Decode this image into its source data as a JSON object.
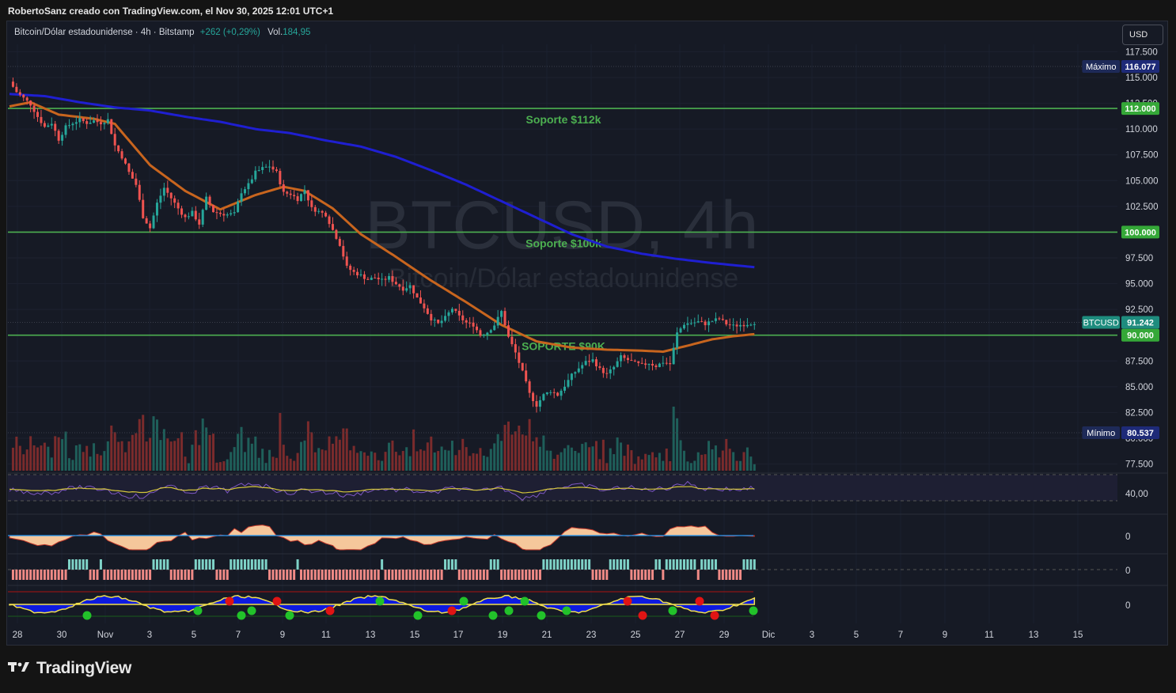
{
  "header": {
    "attribution": "RobertoSanz creado con TradingView.com, el Nov 30, 2025 12:01 UTC+1"
  },
  "legend": {
    "symbol_desc": "Bitcoin/Dólar estadounidense · 4h · Bitstamp",
    "change": "+262 (+0,29%)",
    "vol_label": "Vol.",
    "vol_value": "184,95"
  },
  "currency_button": "USD",
  "watermark": {
    "ticker": "BTCUSD, 4h",
    "name": "Bitcoin/Dólar estadounidense"
  },
  "brand": "TradingView",
  "colors": {
    "up": "#26a69a",
    "down": "#ef5350",
    "support": "#4caf50",
    "ma_fast": "#c8651e",
    "ma_slow": "#1f1fd1",
    "background": "#161a25"
  },
  "chart_data": {
    "type": "candlestick",
    "price_axis_ticks": [
      "117.500",
      "115.000",
      "112.500",
      "110.000",
      "107.500",
      "105.000",
      "102.500",
      "100.000",
      "97.500",
      "95.000",
      "92.500",
      "90.000",
      "87.500",
      "85.000",
      "82.500",
      "80.000",
      "77.500"
    ],
    "price_range": [
      77000,
      118000
    ],
    "time_axis_ticks": [
      "28",
      "30",
      "Nov",
      "3",
      "5",
      "7",
      "9",
      "11",
      "13",
      "15",
      "17",
      "19",
      "21",
      "23",
      "25",
      "27",
      "29",
      "Dic",
      "3",
      "5",
      "7",
      "9",
      "11",
      "13",
      "15"
    ],
    "price_tags": [
      {
        "label": "Máximo",
        "value": "116.077",
        "kind": "max"
      },
      {
        "label": "",
        "value": "112.000",
        "kind": "support"
      },
      {
        "label": "",
        "value": "100.000",
        "kind": "support"
      },
      {
        "label": "BTCUSD",
        "value": "91.242",
        "kind": "last"
      },
      {
        "label": "",
        "value": "90.000",
        "kind": "support"
      },
      {
        "label": "Mínimo",
        "value": "80.537",
        "kind": "min"
      }
    ],
    "support_lines": [
      {
        "price": 112000,
        "label": "Soporte $112k"
      },
      {
        "price": 100000,
        "label": "Soporte $100k"
      },
      {
        "price": 90000,
        "label": "SOPORTE $90K"
      }
    ],
    "path_points": [
      [
        0,
        114600
      ],
      [
        2,
        113600
      ],
      [
        4,
        113000
      ],
      [
        6,
        112400
      ],
      [
        8,
        111200
      ],
      [
        10,
        110200
      ],
      [
        12,
        110600
      ],
      [
        14,
        109000
      ],
      [
        16,
        110200
      ],
      [
        18,
        110600
      ],
      [
        20,
        110900
      ],
      [
        22,
        110600
      ],
      [
        24,
        110800
      ],
      [
        26,
        110600
      ],
      [
        28,
        110900
      ],
      [
        30,
        108400
      ],
      [
        32,
        107300
      ],
      [
        34,
        105800
      ],
      [
        36,
        104600
      ],
      [
        38,
        101500
      ],
      [
        40,
        100400
      ],
      [
        42,
        102800
      ],
      [
        44,
        104300
      ],
      [
        46,
        103300
      ],
      [
        48,
        102300
      ],
      [
        50,
        101400
      ],
      [
        52,
        101900
      ],
      [
        54,
        100800
      ],
      [
        56,
        103300
      ],
      [
        58,
        102000
      ],
      [
        60,
        101800
      ],
      [
        62,
        101700
      ],
      [
        64,
        101800
      ],
      [
        66,
        103900
      ],
      [
        68,
        104600
      ],
      [
        70,
        105800
      ],
      [
        72,
        106200
      ],
      [
        74,
        106400
      ],
      [
        76,
        105800
      ],
      [
        78,
        103800
      ],
      [
        80,
        103700
      ],
      [
        82,
        103200
      ],
      [
        84,
        104100
      ],
      [
        86,
        102300
      ],
      [
        88,
        102000
      ],
      [
        90,
        101700
      ],
      [
        92,
        100200
      ],
      [
        94,
        98800
      ],
      [
        96,
        96600
      ],
      [
        98,
        96100
      ],
      [
        100,
        95800
      ],
      [
        102,
        95400
      ],
      [
        104,
        95600
      ],
      [
        106,
        95300
      ],
      [
        108,
        95600
      ],
      [
        110,
        95000
      ],
      [
        112,
        94500
      ],
      [
        114,
        94800
      ],
      [
        116,
        93600
      ],
      [
        118,
        92700
      ],
      [
        120,
        91600
      ],
      [
        122,
        91100
      ],
      [
        124,
        91700
      ],
      [
        126,
        92600
      ],
      [
        128,
        91800
      ],
      [
        130,
        91200
      ],
      [
        132,
        91000
      ],
      [
        134,
        90000
      ],
      [
        136,
        90300
      ],
      [
        138,
        91000
      ],
      [
        140,
        92300
      ],
      [
        142,
        89800
      ],
      [
        144,
        88300
      ],
      [
        146,
        86400
      ],
      [
        148,
        84300
      ],
      [
        150,
        83200
      ],
      [
        152,
        84200
      ],
      [
        154,
        84600
      ],
      [
        156,
        84200
      ],
      [
        158,
        85100
      ],
      [
        160,
        86100
      ],
      [
        162,
        86800
      ],
      [
        164,
        87400
      ],
      [
        166,
        87600
      ],
      [
        168,
        86700
      ],
      [
        170,
        86200
      ],
      [
        172,
        86900
      ],
      [
        174,
        87900
      ],
      [
        176,
        87600
      ],
      [
        178,
        87300
      ],
      [
        180,
        87100
      ],
      [
        182,
        87300
      ],
      [
        184,
        87000
      ],
      [
        186,
        87400
      ],
      [
        188,
        87200
      ],
      [
        190,
        90200
      ],
      [
        192,
        91100
      ],
      [
        194,
        91200
      ],
      [
        196,
        91300
      ],
      [
        198,
        91100
      ],
      [
        200,
        91400
      ],
      [
        202,
        91600
      ],
      [
        204,
        91100
      ],
      [
        206,
        90900
      ],
      [
        208,
        91000
      ],
      [
        210,
        91100
      ],
      [
        212,
        91242
      ]
    ],
    "ma_fast_points": [
      [
        0,
        112200
      ],
      [
        6,
        112600
      ],
      [
        14,
        111400
      ],
      [
        24,
        111000
      ],
      [
        30,
        110500
      ],
      [
        40,
        106500
      ],
      [
        50,
        104000
      ],
      [
        60,
        102200
      ],
      [
        70,
        103600
      ],
      [
        78,
        104400
      ],
      [
        84,
        104000
      ],
      [
        92,
        102300
      ],
      [
        100,
        99800
      ],
      [
        110,
        97600
      ],
      [
        120,
        95300
      ],
      [
        130,
        93200
      ],
      [
        140,
        91000
      ],
      [
        150,
        89400
      ],
      [
        160,
        88800
      ],
      [
        170,
        88600
      ],
      [
        180,
        88500
      ],
      [
        186,
        88400
      ],
      [
        192,
        88900
      ],
      [
        200,
        89600
      ],
      [
        206,
        89900
      ],
      [
        212,
        90100
      ]
    ],
    "ma_slow_points": [
      [
        0,
        113400
      ],
      [
        10,
        113200
      ],
      [
        20,
        112600
      ],
      [
        30,
        112100
      ],
      [
        40,
        111800
      ],
      [
        50,
        111200
      ],
      [
        60,
        110700
      ],
      [
        70,
        110000
      ],
      [
        80,
        109600
      ],
      [
        90,
        108900
      ],
      [
        100,
        108300
      ],
      [
        110,
        107300
      ],
      [
        120,
        106000
      ],
      [
        130,
        104600
      ],
      [
        140,
        103000
      ],
      [
        150,
        101400
      ],
      [
        160,
        99800
      ],
      [
        170,
        98600
      ],
      [
        180,
        97900
      ],
      [
        190,
        97400
      ],
      [
        200,
        97000
      ],
      [
        212,
        96600
      ]
    ],
    "indicator_ticks": [
      "40,00",
      "0",
      "0",
      "0"
    ]
  }
}
